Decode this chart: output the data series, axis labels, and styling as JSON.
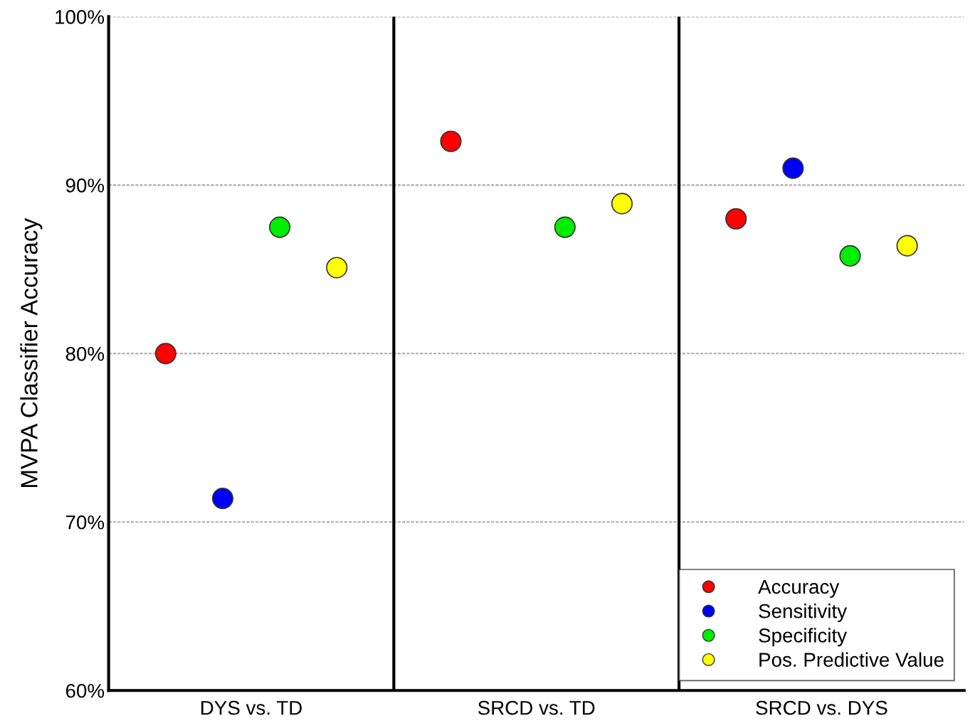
{
  "chart_data": {
    "type": "scatter",
    "ylabel": "MVPA Classifier Accuracy",
    "categories": [
      "DYS vs. TD",
      "SRCD vs. TD",
      "SRCD vs. DYS"
    ],
    "series": [
      {
        "name": "Accuracy",
        "color": "#ff0000",
        "values": [
          80.0,
          92.6,
          88.0
        ]
      },
      {
        "name": "Sensitivity",
        "color": "#0000ff",
        "values": [
          71.4,
          null,
          91.0
        ]
      },
      {
        "name": "Specificity",
        "color": "#00ee00",
        "values": [
          87.5,
          87.5,
          85.8
        ]
      },
      {
        "name": "Pos. Predictive Value",
        "color": "#ffff00",
        "values": [
          85.1,
          88.9,
          86.4
        ]
      }
    ],
    "ylim": [
      60,
      100
    ],
    "yticks": [
      {
        "value": 60,
        "label": "60%"
      },
      {
        "value": 70,
        "label": "70%"
      },
      {
        "value": 80,
        "label": "80%"
      },
      {
        "value": 90,
        "label": "90%"
      },
      {
        "value": 100,
        "label": "100%"
      }
    ],
    "grid": "y",
    "legend": "bottom right",
    "marker": "circle"
  }
}
